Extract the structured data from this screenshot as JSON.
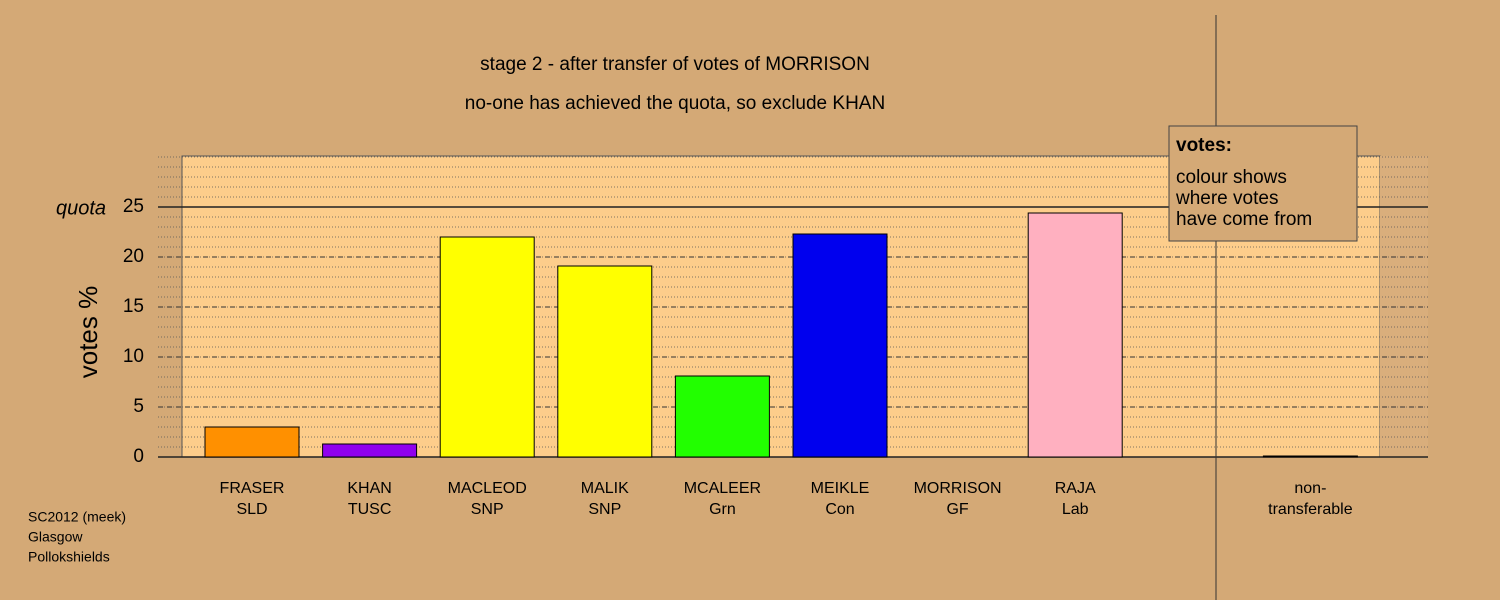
{
  "chart_data": {
    "type": "bar",
    "title": "stage 2 - after transfer of votes of MORRISON",
    "subtitle": "no-one has achieved the quota, so exclude KHAN",
    "y_label": "votes %",
    "categories": [
      [
        "FRASER",
        "SLD"
      ],
      [
        "KHAN",
        "TUSC"
      ],
      [
        "MACLEOD",
        "SNP"
      ],
      [
        "MALIK",
        "SNP"
      ],
      [
        "MCALEER",
        "Grn"
      ],
      [
        "MEIKLE",
        "Con"
      ],
      [
        "MORRISON",
        "GF"
      ],
      [
        "RAJA",
        "Lab"
      ],
      null,
      [
        "non-",
        "transferable"
      ]
    ],
    "values": [
      3.0,
      1.3,
      22.0,
      19.1,
      8.1,
      22.3,
      0,
      24.4,
      null,
      0.1
    ],
    "colors": [
      "#ff9000",
      "#9000ee",
      "#ffff00",
      "#ffff00",
      "#22ff00",
      "#0000ee",
      "#ffb0c0",
      "#ffb0c0",
      null,
      "#999999"
    ],
    "ylim": [
      0,
      30
    ],
    "yticks": [
      0,
      5,
      10,
      15,
      20,
      25
    ],
    "grid": true,
    "quota": {
      "label": "quota",
      "value": 25
    },
    "legend": {
      "title": "votes:",
      "lines": [
        "colour shows",
        "where votes",
        "have come from"
      ]
    },
    "footnote": [
      "SC2012 (meek)",
      "Glasgow",
      "Pollokshields"
    ]
  }
}
